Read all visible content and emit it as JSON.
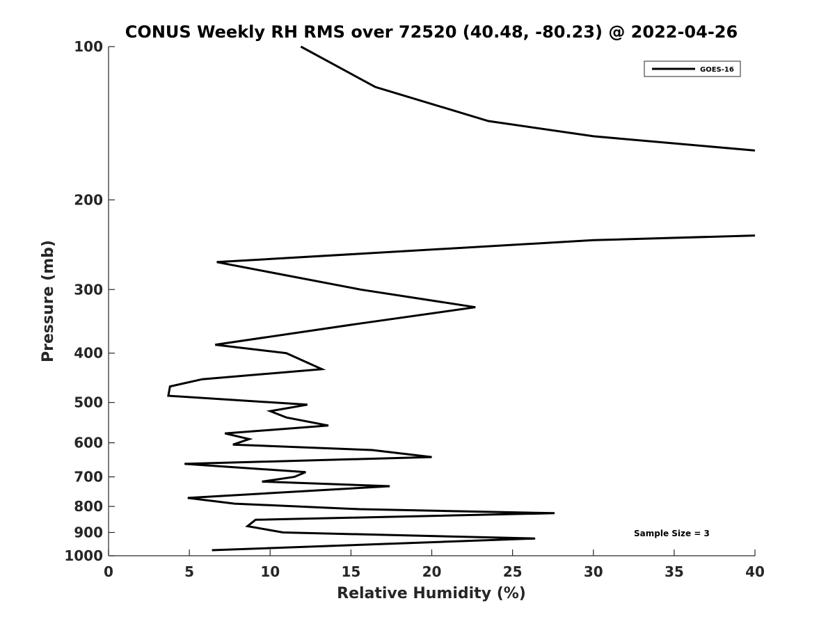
{
  "chart_data": {
    "type": "line",
    "title": "CONUS Weekly RH RMS over 72520 (40.48, -80.23) @ 2022-04-26",
    "xlabel": "Relative Humidity (%)",
    "ylabel": "Pressure (mb)",
    "xlim": [
      0,
      40
    ],
    "ylim": [
      100,
      1000
    ],
    "y_scale": "log",
    "y_reversed": true,
    "x_ticks": [
      "0",
      "5",
      "10",
      "15",
      "20",
      "25",
      "30",
      "35",
      "40"
    ],
    "y_ticks": [
      "100",
      "200",
      "300",
      "400",
      "500",
      "600",
      "700",
      "800",
      "900",
      "1000"
    ],
    "legend_location": "top-right",
    "grid": false,
    "series": [
      {
        "name": "GOES-16",
        "color": "#000000",
        "x": [
          6.4,
          26.4,
          10.8,
          8.6,
          9.1,
          27.6,
          15.5,
          7.8,
          4.9,
          17.4,
          9.5,
          11.5,
          12.2,
          4.7,
          20.0,
          16.3,
          7.7,
          8.7,
          7.2,
          13.6,
          11.0,
          10.0,
          12.3,
          3.7,
          3.8,
          5.8,
          13.2,
          11.0,
          6.6,
          15.5,
          22.7,
          15.6,
          6.7,
          30.0,
          40.0,
          null,
          40.0,
          30.0,
          23.5,
          16.5,
          11.9
        ],
        "y": [
          975,
          925,
          900,
          875,
          850,
          825,
          810,
          790,
          770,
          730,
          715,
          700,
          685,
          660,
          640,
          620,
          605,
          590,
          575,
          555,
          535,
          520,
          505,
          485,
          465,
          450,
          430,
          400,
          385,
          350,
          325,
          300,
          265,
          240,
          235,
          null,
          160,
          150,
          140,
          120,
          100
        ]
      }
    ],
    "annotations": [
      "Sample Size = 3"
    ]
  }
}
